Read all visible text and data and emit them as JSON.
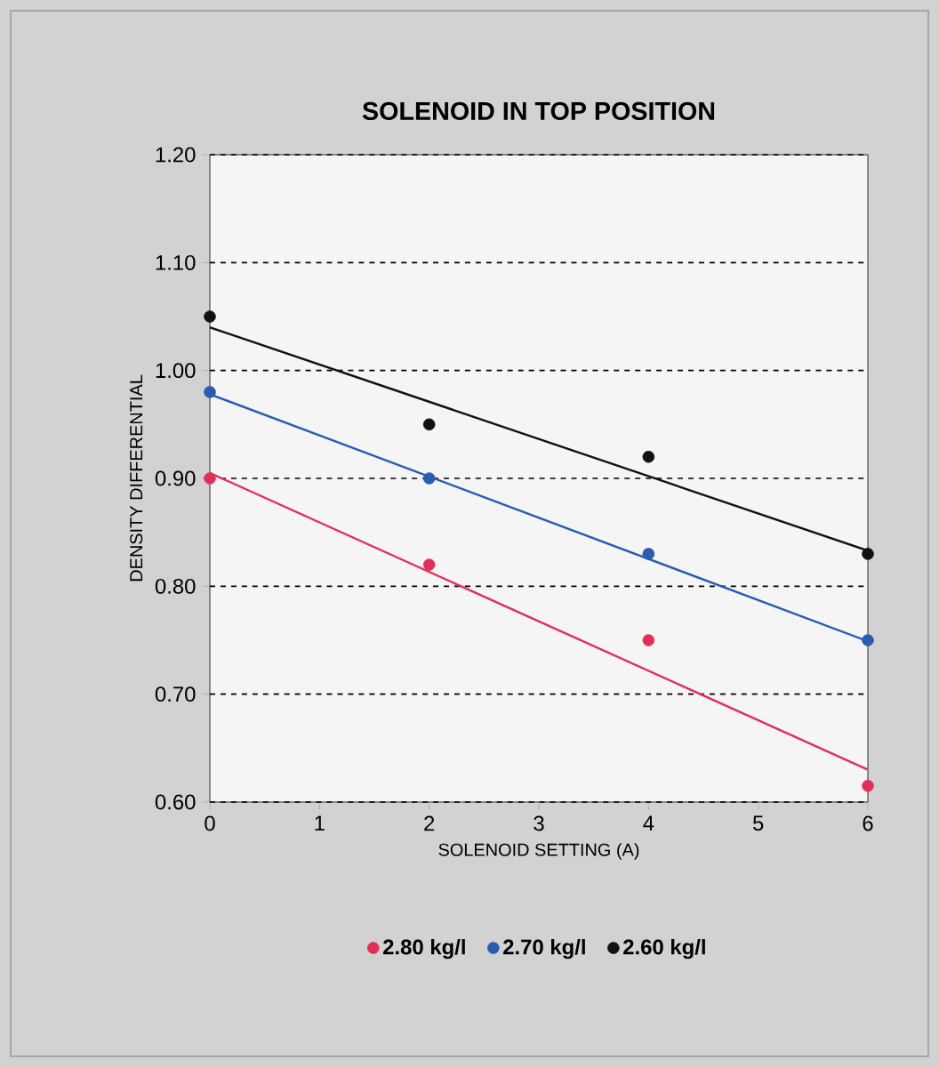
{
  "chart_data": {
    "type": "scatter",
    "title": "SOLENOID IN TOP POSITION",
    "xlabel": "SOLENOID SETTING (A)",
    "ylabel": "DENSITY DIFFERENTIAL",
    "series": [
      {
        "name": "2.80 kg/l",
        "marker": "circle",
        "color": "#e0305a",
        "x": [
          0,
          2,
          4,
          6
        ],
        "values": [
          0.9,
          0.82,
          0.75,
          0.615
        ]
      },
      {
        "name": "2.70 kg/l",
        "marker": "circle",
        "color": "#2a5cb0",
        "x": [
          0,
          2,
          4,
          6
        ],
        "values": [
          0.98,
          0.9,
          0.83,
          0.75
        ]
      },
      {
        "name": "2.60 kg/l",
        "marker": "circle",
        "color": "#111111",
        "x": [
          0,
          2,
          4,
          6
        ],
        "values": [
          1.05,
          0.95,
          0.92,
          0.83
        ]
      },
      {
        "type": "line",
        "marker": "none",
        "color": "#e0305a",
        "x": [
          0,
          6
        ],
        "values": [
          0.905,
          0.63
        ]
      },
      {
        "type": "line",
        "marker": "none",
        "color": "#2a5cb0",
        "x": [
          0,
          6
        ],
        "values": [
          0.978,
          0.749
        ]
      },
      {
        "type": "line",
        "marker": "none",
        "color": "#111111",
        "x": [
          0,
          6
        ],
        "values": [
          1.04,
          0.833
        ]
      }
    ],
    "xlim": [
      0,
      6
    ],
    "xticks": [
      0,
      1,
      2,
      3,
      4,
      5,
      6
    ],
    "ylim": [
      0.6,
      1.2
    ],
    "yticks": [
      {
        "value": 0.6,
        "label": "0.60"
      },
      {
        "value": 0.7,
        "label": "0.70"
      },
      {
        "value": 0.8,
        "label": "0.80"
      },
      {
        "value": 0.9,
        "label": "0.90"
      },
      {
        "value": 1.0,
        "label": "1.00"
      },
      {
        "value": 1.1,
        "label": "1.10"
      },
      {
        "value": 1.2,
        "label": "1.20"
      }
    ],
    "grid": "y",
    "legend": "bottom"
  }
}
